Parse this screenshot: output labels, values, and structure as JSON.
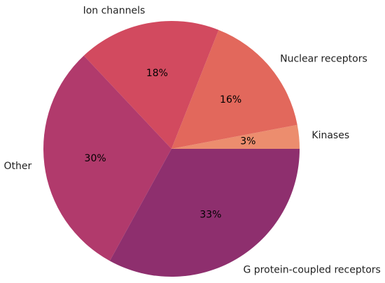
{
  "chart_data": {
    "type": "pie",
    "start_angle_deg": 0,
    "direction": "counterclockwise",
    "slices": [
      {
        "label": "Kinases",
        "value": 3,
        "pct_text": "3%",
        "color": "#EC8D6E"
      },
      {
        "label": "Nuclear receptors",
        "value": 16,
        "pct_text": "16%",
        "color": "#E2685C"
      },
      {
        "label": "Ion channels",
        "value": 18,
        "pct_text": "18%",
        "color": "#D24A5F"
      },
      {
        "label": "Other",
        "value": 30,
        "pct_text": "30%",
        "color": "#B13A6C"
      },
      {
        "label": "G protein-coupled receptors",
        "value": 33,
        "pct_text": "33%",
        "color": "#8E2F6E"
      }
    ]
  }
}
